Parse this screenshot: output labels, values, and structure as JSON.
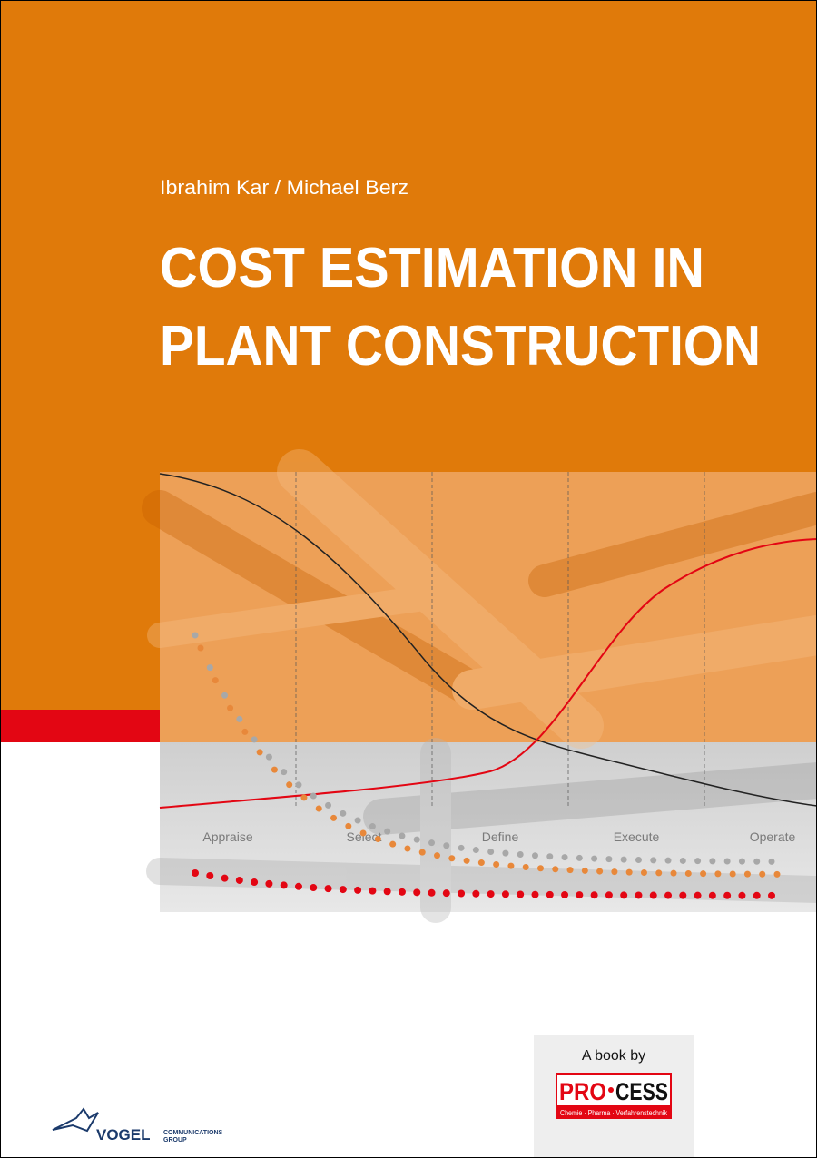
{
  "cover": {
    "authors": "Ibrahim Kar / Michael Berz",
    "title": [
      "COST ESTIMATION IN",
      "PLANT CONSTRUCTION"
    ],
    "phases": [
      "Appraise",
      "Select",
      "Define",
      "Execute",
      "Operate"
    ],
    "publisher_box": {
      "caption": "A book by",
      "logo_left": "PRO",
      "logo_right": "CESS",
      "logo_tagline": "Chemie · Pharma · Verfahrenstechnik"
    },
    "publisher": {
      "name": "VOGEL",
      "line1": "COMMUNICATIONS",
      "line2": "GROUP"
    }
  }
}
